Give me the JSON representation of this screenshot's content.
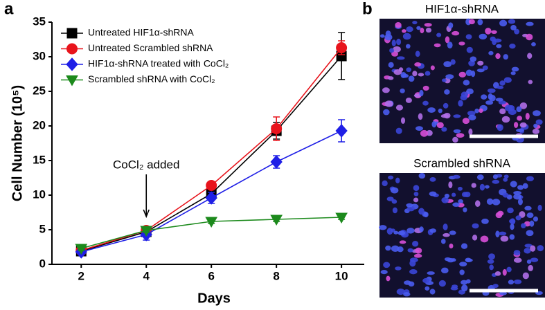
{
  "panel_labels": [
    "a",
    "b"
  ],
  "chart_data": {
    "type": "line",
    "x_label": "Days",
    "y_label": "Cell Number (10⁵)",
    "x": [
      2,
      4,
      6,
      8,
      10
    ],
    "xlim": [
      1.1,
      10.7
    ],
    "xticks": [
      2,
      4,
      6,
      8,
      10
    ],
    "ylim": [
      0,
      35
    ],
    "yticks": [
      0,
      5,
      10,
      15,
      20,
      25,
      30,
      35
    ],
    "legend": "upper left",
    "series": [
      {
        "name": "Untreated HIF1α-shRNA",
        "color": "#000000",
        "marker": "square",
        "values": [
          1.9,
          4.7,
          10.2,
          19.3,
          30.1
        ],
        "errors": [
          0.3,
          0.3,
          0.4,
          1.2,
          3.4
        ]
      },
      {
        "name": "Untreated Scrambled shRNA",
        "color": "#e8141c",
        "marker": "circle",
        "values": [
          2.0,
          4.9,
          11.4,
          19.6,
          31.3
        ],
        "errors": [
          0.3,
          0.3,
          0.3,
          1.7,
          1.0
        ]
      },
      {
        "name": "HIF1α-shRNA treated with CoCl₂",
        "color": "#1f1fe6",
        "marker": "diamond",
        "values": [
          1.8,
          4.3,
          9.6,
          14.8,
          19.3
        ],
        "errors": [
          0.3,
          0.8,
          0.8,
          0.9,
          1.6
        ]
      },
      {
        "name": "Scrambled shRNA with CoCl₂",
        "color": "#1c8a1c",
        "marker": "triangle-down",
        "values": [
          2.3,
          4.9,
          6.2,
          6.5,
          6.8
        ],
        "errors": [
          0.3,
          0.3,
          0.3,
          0.3,
          0.3
        ]
      }
    ],
    "annotation": {
      "text": "CoCl₂ added",
      "x": 4
    }
  },
  "images": [
    {
      "title": "HIF1α-shRNA"
    },
    {
      "title": "Scrambled shRNA"
    }
  ]
}
